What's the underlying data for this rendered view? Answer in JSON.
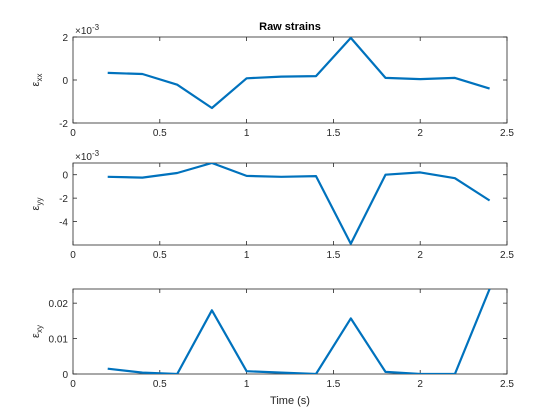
{
  "chart_data": [
    {
      "type": "line",
      "title": "Raw strains",
      "ylabel": "ε",
      "ylabel_sub": "xx",
      "exponent_base": "×10",
      "exponent_power": "-3",
      "scale": 0.001,
      "xlim": [
        0,
        2.5
      ],
      "ylim": [
        -0.002,
        0.002
      ],
      "xticks": [
        0,
        0.5,
        1,
        1.5,
        2,
        2.5
      ],
      "xtick_labels": [
        "0",
        "0.5",
        "1",
        "1.5",
        "2",
        "2.5"
      ],
      "yticks": [
        -0.002,
        0,
        0.002
      ],
      "ytick_labels": [
        "-2",
        "0",
        "2"
      ],
      "color": "#0072BD",
      "x": [
        0.2,
        0.4,
        0.6,
        0.8,
        1.0,
        1.2,
        1.4,
        1.6,
        1.8,
        2.0,
        2.2,
        2.4
      ],
      "y": [
        0.00033,
        0.00028,
        -0.00022,
        -0.0013,
        8e-05,
        0.00016,
        0.00018,
        0.00196,
        0.0001,
        4e-05,
        0.0001,
        -0.0004
      ]
    },
    {
      "type": "line",
      "title": "",
      "ylabel": "ε",
      "ylabel_sub": "yy",
      "exponent_base": "×10",
      "exponent_power": "-3",
      "scale": 0.001,
      "xlim": [
        0,
        2.5
      ],
      "ylim": [
        -0.006,
        0.001
      ],
      "xticks": [
        0,
        0.5,
        1,
        1.5,
        2,
        2.5
      ],
      "xtick_labels": [
        "0",
        "0.5",
        "1",
        "1.5",
        "2",
        "2.5"
      ],
      "yticks": [
        -0.004,
        -0.002,
        0
      ],
      "ytick_labels": [
        "-4",
        "-2",
        "0"
      ],
      "color": "#0072BD",
      "x": [
        0.2,
        0.4,
        0.6,
        0.8,
        1.0,
        1.2,
        1.4,
        1.6,
        1.8,
        2.0,
        2.2,
        2.4
      ],
      "y": [
        -0.00018,
        -0.00025,
        0.00015,
        0.001,
        -0.0001,
        -0.00018,
        -0.00012,
        -0.0059,
        0.0,
        0.0002,
        -0.0003,
        -0.0022
      ]
    },
    {
      "type": "line",
      "title": "",
      "ylabel": "ε",
      "ylabel_sub": "xy",
      "xlabel": "Time (s)",
      "xlim": [
        0,
        2.5
      ],
      "ylim": [
        0,
        0.024
      ],
      "xticks": [
        0,
        0.5,
        1,
        1.5,
        2,
        2.5
      ],
      "xtick_labels": [
        "0",
        "0.5",
        "1",
        "1.5",
        "2",
        "2.5"
      ],
      "yticks": [
        0,
        0.01,
        0.02
      ],
      "ytick_labels": [
        "0",
        "0.01",
        "0.02"
      ],
      "color": "#0072BD",
      "x": [
        0.2,
        0.4,
        0.6,
        0.8,
        1.0,
        1.2,
        1.4,
        1.6,
        1.8,
        2.0,
        2.2,
        2.4
      ],
      "y": [
        0.0015,
        0.0004,
        0.0,
        0.018,
        0.0008,
        0.0004,
        0.0,
        0.0157,
        0.0006,
        0.0,
        0.0,
        0.024
      ]
    }
  ]
}
